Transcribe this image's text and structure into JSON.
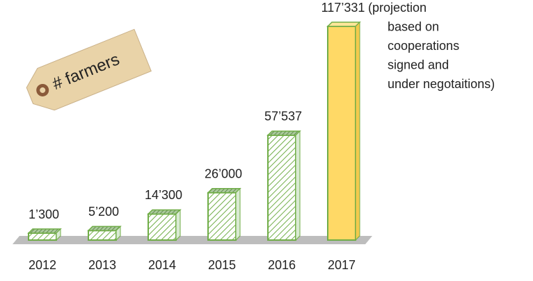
{
  "chart_data": {
    "type": "bar",
    "title": "# farmers",
    "categories": [
      "2012",
      "2013",
      "2014",
      "2015",
      "2016",
      "2017"
    ],
    "values": [
      1300,
      5200,
      14300,
      26000,
      57537,
      117331
    ],
    "value_labels": [
      "1’300",
      "5’200",
      "14’300",
      "26’000",
      "57’537",
      "117’331"
    ],
    "colors": [
      "#ffffff",
      "#ffffff",
      "#ffffff",
      "#ffffff",
      "#ffffff",
      "#ffd966"
    ],
    "edge_color": "#70ad47",
    "annotation": [
      "(projection",
      "based on",
      "cooperations",
      "signed and",
      "under negotaitions)"
    ]
  }
}
